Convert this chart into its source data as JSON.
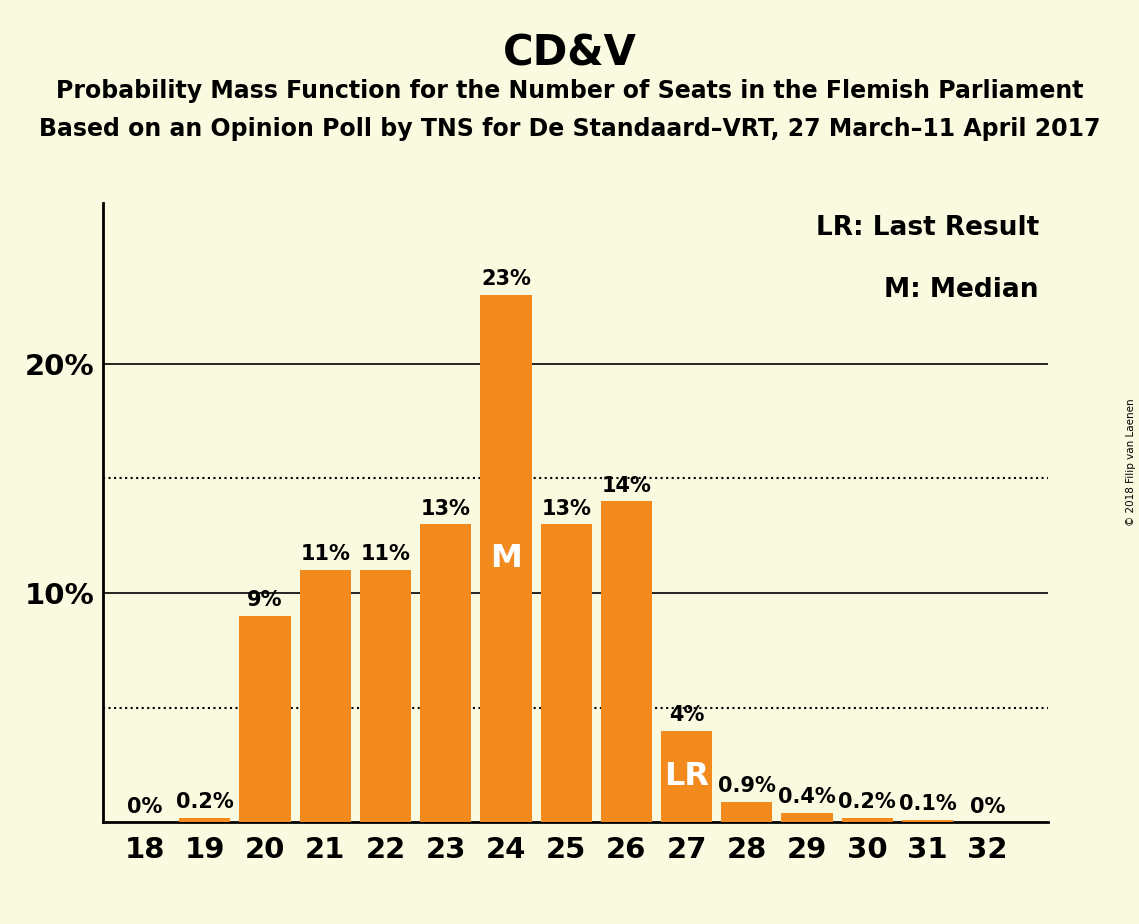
{
  "title": "CD&V",
  "subtitle1": "Probability Mass Function for the Number of Seats in the Flemish Parliament",
  "subtitle2": "Based on an Opinion Poll by TNS for De Standaard–VRT, 27 March–11 April 2017",
  "watermark": "© 2018 Filip van Laenen",
  "legend_lr": "LR: Last Result",
  "legend_m": "M: Median",
  "seats": [
    18,
    19,
    20,
    21,
    22,
    23,
    24,
    25,
    26,
    27,
    28,
    29,
    30,
    31,
    32
  ],
  "probabilities": [
    0.0,
    0.2,
    9.0,
    11.0,
    11.0,
    13.0,
    23.0,
    13.0,
    14.0,
    4.0,
    0.9,
    0.4,
    0.2,
    0.1,
    0.0
  ],
  "labels": [
    "0%",
    "0.2%",
    "9%",
    "11%",
    "11%",
    "13%",
    "23%",
    "13%",
    "14%",
    "4%",
    "0.9%",
    "0.4%",
    "0.2%",
    "0.1%",
    "0%"
  ],
  "bar_color": "#F28A1E",
  "background_color": "#FAFAE0",
  "median_seat": 24,
  "lr_seat": 27,
  "dotted_lines": [
    5.0,
    15.0
  ],
  "solid_lines": [
    10.0,
    20.0
  ],
  "title_fontsize": 30,
  "subtitle_fontsize": 17,
  "bar_label_fontsize": 15,
  "legend_fontsize": 19,
  "tick_fontsize": 21,
  "ymax": 27,
  "xlim_left": 17.3,
  "xlim_right": 33.0
}
